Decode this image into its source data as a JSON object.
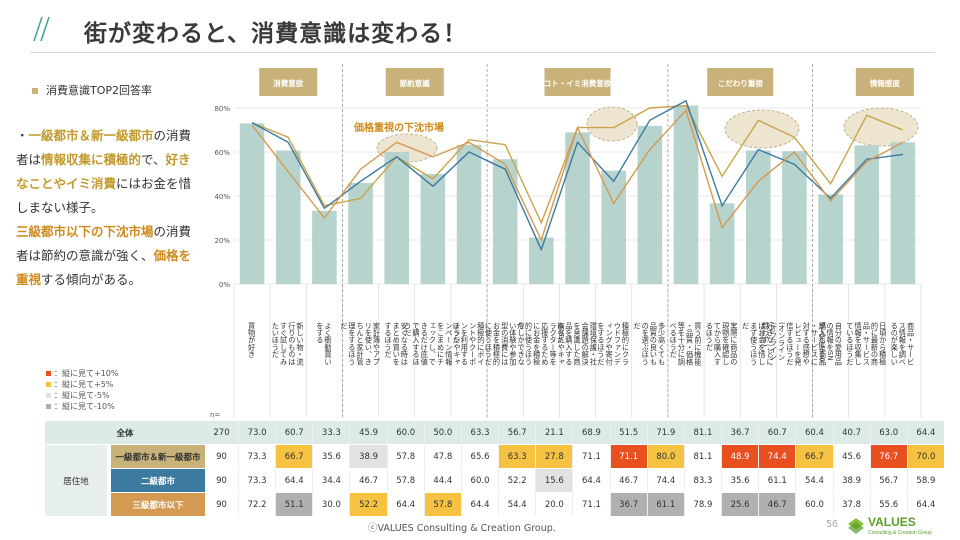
{
  "header": {
    "title": "街が変わると、消費意識は変わる！"
  },
  "sidebar": {
    "legend_label": "消費意識TOP2回答率",
    "text": [
      [
        {
          "t": "・",
          "c": ""
        },
        {
          "t": "一級都市＆新一級都市",
          "c": "gold"
        },
        {
          "t": "の消費者は",
          "c": ""
        },
        {
          "t": "情報収集に積極的",
          "c": "gold"
        },
        {
          "t": "で、",
          "c": ""
        },
        {
          "t": "好きなことやイミ消費",
          "c": "gold"
        },
        {
          "t": "にはお金を惜しまない様子。",
          "c": ""
        }
      ],
      [
        {
          "t": "三級都市以下の下沈市場",
          "c": "gold2"
        },
        {
          "t": "の消費者は節約の意識が強く、",
          "c": ""
        },
        {
          "t": "価格を重視",
          "c": "gold2"
        },
        {
          "t": "する傾向がある。",
          "c": ""
        }
      ]
    ],
    "color_key": [
      {
        "label": "：縦に見て+10%",
        "color": "#e8501f"
      },
      {
        "label": "：縦に見て+5%",
        "color": "#f5c242"
      },
      {
        "label": "：縦に見て-5%",
        "color": "#e2e2e2"
      },
      {
        "label": "：縦に見て-10%",
        "color": "#b0b0b0"
      }
    ]
  },
  "chart_data": {
    "type": "bar",
    "ylim": [
      0,
      80
    ],
    "yticks": [
      "0%",
      "20%",
      "40%",
      "60%",
      "80%"
    ],
    "n_label": "n=",
    "annotation": "価格重視の下沈市場",
    "groups": [
      {
        "label": "消費意欲",
        "start": 0,
        "end": 2
      },
      {
        "label": "節約意識",
        "start": 3,
        "end": 6
      },
      {
        "label": "コト・イミ消費意欲",
        "start": 7,
        "end": 11
      },
      {
        "label": "こだわり重視",
        "start": 12,
        "end": 15
      },
      {
        "label": "情報感度",
        "start": 16,
        "end": 19
      }
    ],
    "categories": [
      "買物が好き",
      "新しい物・流行りのものはすぐ試してみたいほうだ",
      "よく衝動買いをする",
      "家計簿やアプリを使い、きちんと家計管理をするほうだ",
      "安くなる時はまとめ買いをするほうだ",
      "チラシやキャンペーン情報をこまめにチェックし、できるだけ底値で購入するほうだ",
      "積極的にポイントやクーポンを利用するほうだ",
      "今しかできない体験や参加型の消費にはお金を積極的に使うほうだ",
      "有名人やキャラクター等を応援するためにお金を積極的に使うほうだ",
      "環境保護・社会課題の解決を意識した商品を購入するほうだ",
      "積極的にクラウドファンディングや寄付をするほうだ",
      "多少高くても品質の良いものを選ぶほうだ",
      "買う前に機能・品質・価格等を十分に調べるほうだ",
      "実際に商品の現物を確認してから購入するほうだ",
      "好きなことにはお金を惜しまず使うほうだ",
      "購入した商品・サービスに対する感想やレビューを発信するほうだ(オンライン/オフライン問わず)",
      "自分の愛用品の情報をSNSで発信する",
      "日頃から積極的に最新の商品・サービス情報を収集しているほうだ",
      "商品・サービス情報を調べるのが楽しい"
    ],
    "table_rows": [
      {
        "label": "全体",
        "group": "",
        "n": "270",
        "values": [
          "73.0",
          "60.7",
          "33.3",
          "45.9",
          "60.0",
          "50.0",
          "63.3",
          "56.7",
          "21.1",
          "68.9",
          "51.5",
          "71.9",
          "81.1",
          "36.7",
          "60.7",
          "60.4",
          "40.7",
          "63.0",
          "64.4"
        ]
      },
      {
        "label": "一級都市＆新一級都市",
        "group": "居住地",
        "n": "90",
        "values": [
          "73.3",
          "66.7",
          "35.6",
          "38.9",
          "57.8",
          "47.8",
          "65.6",
          "63.3",
          "27.8",
          "71.1",
          "71.1",
          "80.0",
          "81.1",
          "48.9",
          "74.4",
          "66.7",
          "45.6",
          "76.7",
          "70.0"
        ]
      },
      {
        "label": "二級都市",
        "group": "",
        "n": "90",
        "values": [
          "73.3",
          "64.4",
          "34.4",
          "46.7",
          "57.8",
          "44.4",
          "60.0",
          "52.2",
          "15.6",
          "64.4",
          "46.7",
          "74.4",
          "83.3",
          "35.6",
          "61.1",
          "54.4",
          "38.9",
          "56.7",
          "58.9"
        ]
      },
      {
        "label": "三級都市以下",
        "group": "",
        "n": "90",
        "values": [
          "72.2",
          "51.1",
          "30.0",
          "52.2",
          "64.4",
          "57.8",
          "64.4",
          "54.4",
          "20.0",
          "71.1",
          "36.7",
          "61.1",
          "78.9",
          "25.6",
          "46.7",
          "60.0",
          "37.8",
          "55.6",
          "64.4"
        ]
      }
    ],
    "cell_colors": [
      [
        "",
        "",
        "",
        "",
        "",
        "",
        "",
        "",
        "",
        "",
        "",
        "",
        "",
        "",
        "",
        "",
        "",
        "",
        ""
      ],
      [
        "",
        "#f5c242",
        "",
        "#e2e2e2",
        "",
        "",
        "",
        "#f5c242",
        "#f5c242",
        "",
        "#e8501f",
        "#f5c242",
        "",
        "#e8501f",
        "#e8501f",
        "#f5c242",
        "",
        "#e8501f",
        "#f5c242"
      ],
      [
        "",
        "",
        "",
        "",
        "",
        "",
        "",
        "",
        "#e2e2e2",
        "",
        "",
        "",
        "",
        "",
        "",
        "",
        "",
        "",
        ""
      ],
      [
        "",
        "#b0b0b0",
        "",
        "#f5c242",
        "",
        "#f5c242",
        "",
        "",
        "",
        "",
        "#b0b0b0",
        "#b0b0b0",
        "",
        "#b0b0b0",
        "#b0b0b0",
        "",
        "",
        "",
        ""
      ]
    ],
    "series_colors": {
      "bar": "#b6d3ce",
      "line1": "#c9a44a",
      "line2": "#3d7aa0",
      "line3": "#d49a52"
    }
  },
  "footer": {
    "copyright": "ⓒVALUES Consulting & Creation Group.",
    "page": "56",
    "logo_text": "VALUES",
    "logo_sub": "Consulting & Creation Group"
  }
}
